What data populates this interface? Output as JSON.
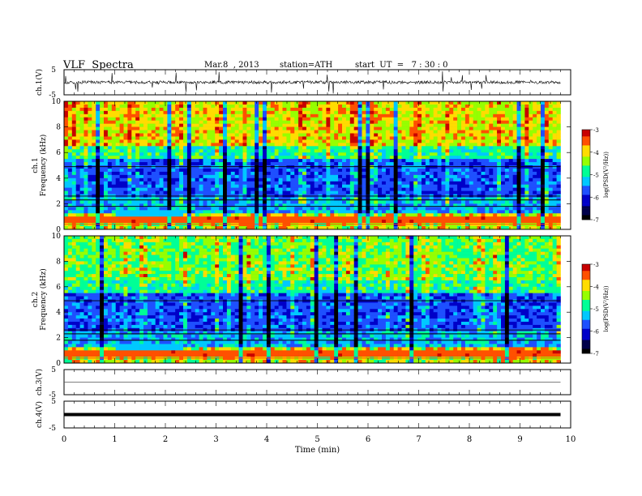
{
  "header": {
    "title": "VLF  Spectra",
    "date": "Mar.8  , 2013",
    "station": "station=ATH",
    "start": "start  UT  =   7 : 30 : 0"
  },
  "colors": {
    "spectrum_scale": [
      "#000000",
      "#00004a",
      "#0000c8",
      "#1e50ff",
      "#00c8ff",
      "#00ff96",
      "#96ff00",
      "#ffdc00",
      "#ff5000",
      "#c80000"
    ]
  },
  "chart_data": [
    {
      "type": "line",
      "panel": "ch1-waveform",
      "ylabel": "ch.1(V)",
      "ylim": [
        -5,
        5
      ],
      "yticks": [
        "5",
        "-5"
      ],
      "x_range": [
        0,
        9.8
      ],
      "baseline": 0,
      "typical_amplitude": 1.2,
      "peak_amplitude": 5
    },
    {
      "type": "heatmap",
      "panel": "ch1-spectrogram",
      "ylabel": "ch.1\nFrequency  (kHz)",
      "ylim": [
        0,
        10
      ],
      "yticks": [
        "0",
        "2",
        "4",
        "6",
        "8",
        "10"
      ],
      "x_range": [
        0,
        9.8
      ],
      "colorbar": {
        "label": "log(PSD(V²/Hz))",
        "range": [
          -7,
          -3
        ],
        "ticks": [
          "-3",
          "-4",
          "-5",
          "-6",
          "-7"
        ]
      }
    },
    {
      "type": "heatmap",
      "panel": "ch2-spectrogram",
      "ylabel": "ch.2\nFrequency  (kHz)",
      "ylim": [
        0,
        10
      ],
      "yticks": [
        "0",
        "2",
        "4",
        "6",
        "8",
        "10"
      ],
      "x_range": [
        0,
        9.8
      ],
      "colorbar": {
        "label": "log(PSD(V²/Hz))",
        "range": [
          -7,
          -3
        ],
        "ticks": [
          "-3",
          "-4",
          "-5",
          "-6",
          "-7"
        ]
      }
    },
    {
      "type": "line",
      "panel": "ch3-waveform",
      "ylabel": "ch.3(V)",
      "ylim": [
        -5,
        5
      ],
      "yticks": [
        "5",
        "-5"
      ],
      "x_range": [
        0,
        9.8
      ],
      "baseline": 0
    },
    {
      "type": "line",
      "panel": "ch4-waveform",
      "ylabel": "ch.4(V)",
      "ylim": [
        -5,
        5
      ],
      "yticks": [
        "5",
        "-5"
      ],
      "x_range": [
        0,
        9.8
      ],
      "baseline": 0
    }
  ],
  "xaxis": {
    "label": "Time  (min)",
    "xlim": [
      0,
      10
    ],
    "ticks": [
      "0",
      "1",
      "2",
      "3",
      "4",
      "5",
      "6",
      "7",
      "8",
      "9",
      "10"
    ]
  }
}
